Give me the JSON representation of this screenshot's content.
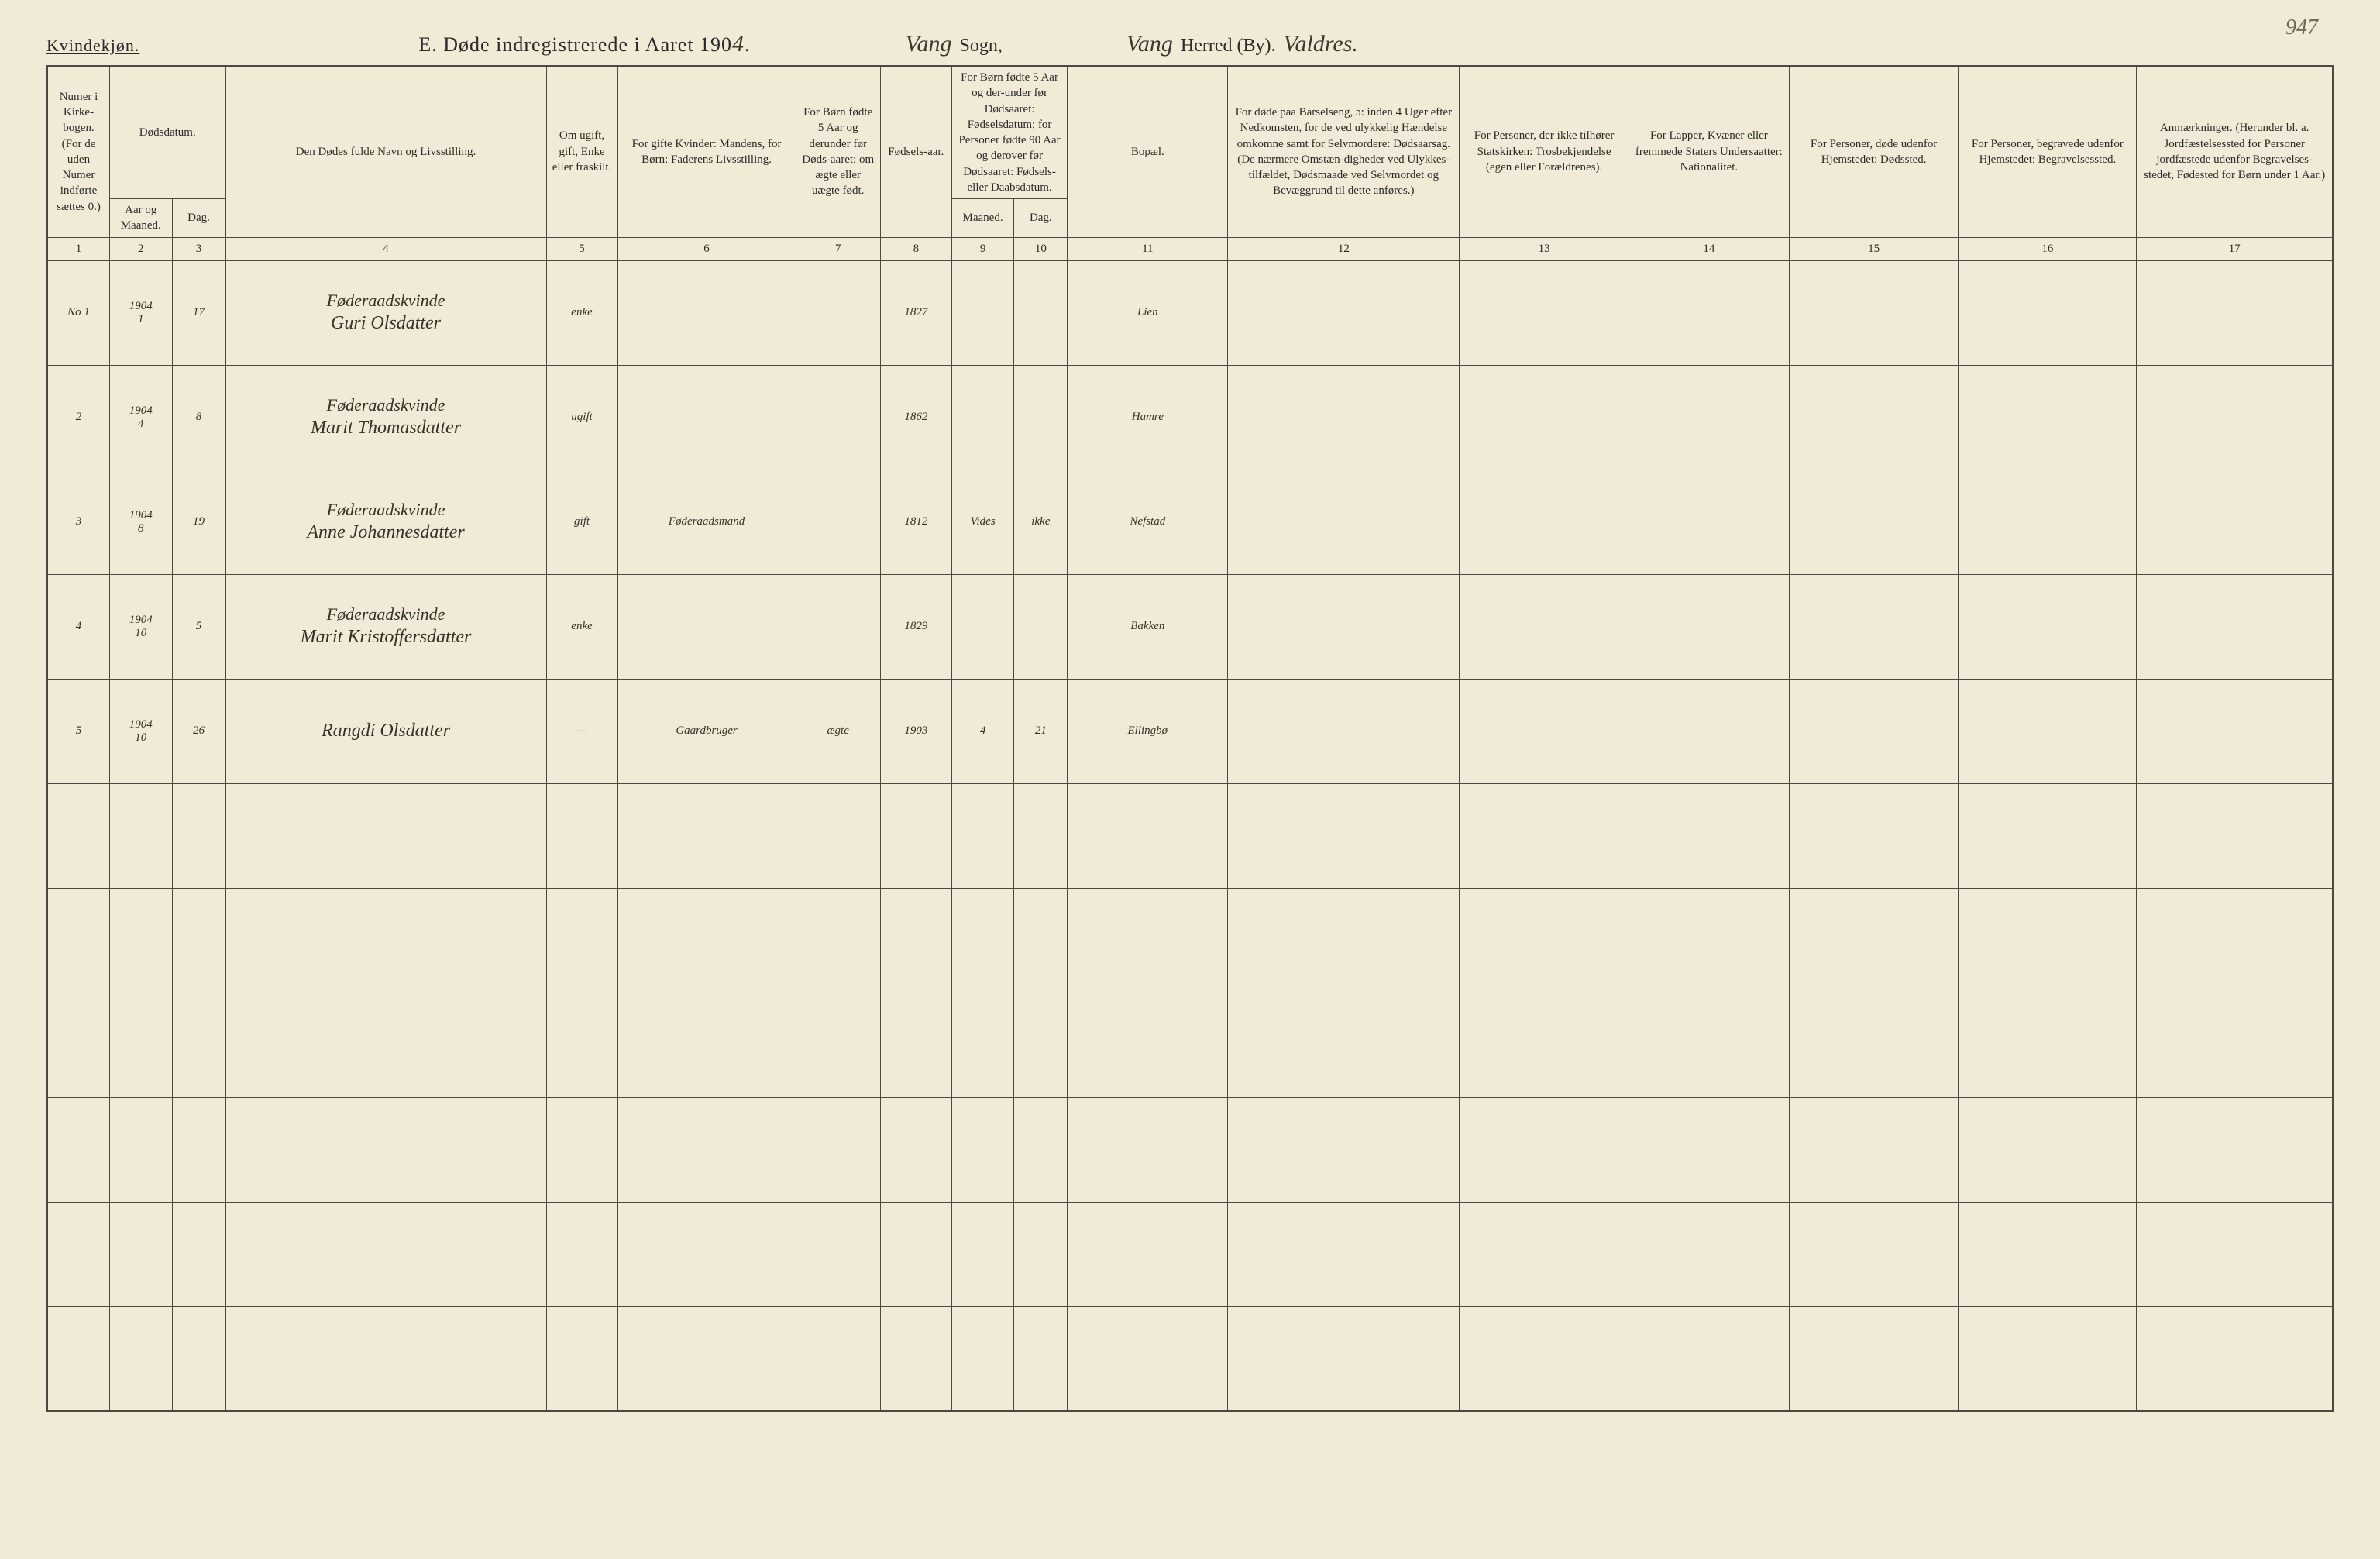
{
  "corner_note": "947",
  "gender_label": "Kvindekjøn.",
  "title_prefix": "E.  Døde indregistrerede i Aaret 190",
  "title_year_hand": "4",
  "title_suffix": ".",
  "sogn_hand": "Vang",
  "sogn_label": "Sogn,",
  "herred_hand": "Vang",
  "herred_label": "Herred (By).",
  "herred_extra_hand": "Valdres.",
  "columns": {
    "c1": "Numer i Kirke-bogen. (For de uden Numer indførte sættes 0.)",
    "c2_top": "Dødsdatum.",
    "c2a": "Aar og Maaned.",
    "c2b": "Dag.",
    "c4": "Den Dødes fulde Navn og Livsstilling.",
    "c5": "Om ugift, gift, Enke eller fraskilt.",
    "c6": "For gifte Kvinder: Mandens, for Børn: Faderens Livsstilling.",
    "c7": "For Børn fødte 5 Aar og derunder før Døds-aaret: om ægte eller uægte født.",
    "c8": "Fødsels-aar.",
    "c9_top": "For Børn fødte 5 Aar og der-under før Dødsaaret: Fødselsdatum; for Personer fødte 90 Aar og derover før Dødsaaret: Fødsels- eller Daabsdatum.",
    "c9a": "Maaned.",
    "c9b": "Dag.",
    "c11": "Bopæl.",
    "c12": "For døde paa Barselseng, ɔ: inden 4 Uger efter Nedkomsten, for de ved ulykkelig Hændelse omkomne samt for Selvmordere: Dødsaarsag. (De nærmere Omstæn-digheder ved Ulykkes-tilfældet, Dødsmaade ved Selvmordet og Bevæggrund til dette anføres.)",
    "c13": "For Personer, der ikke tilhører Statskirken: Trosbekjendelse (egen eller Forældrenes).",
    "c14": "For Lapper, Kvæner eller fremmede Staters Undersaatter: Nationalitet.",
    "c15": "For Personer, døde udenfor Hjemstedet: Dødssted.",
    "c16": "For Personer, begravede udenfor Hjemstedet: Begravelsessted.",
    "c17": "Anmærkninger. (Herunder bl. a. Jordfæstelsessted for Personer jordfæstede udenfor Begravelses-stedet, Fødested for Børn under 1 Aar.)"
  },
  "colnums": [
    "1",
    "2",
    "3",
    "4",
    "5",
    "6",
    "7",
    "8",
    "9",
    "10",
    "11",
    "12",
    "13",
    "14",
    "15",
    "16",
    "17"
  ],
  "rows": [
    {
      "no": "No 1",
      "ym": "1904\n1",
      "day": "17",
      "occupation": "Føderaadskvinde",
      "name": "Guri Olsdatter",
      "status": "enke",
      "father": "",
      "legit": "",
      "byear": "1827",
      "bmon": "",
      "bday": "",
      "place": "Lien"
    },
    {
      "no": "2",
      "ym": "1904\n4",
      "day": "8",
      "occupation": "Føderaadskvinde",
      "name": "Marit Thomasdatter",
      "status": "ugift",
      "father": "",
      "legit": "",
      "byear": "1862",
      "bmon": "",
      "bday": "",
      "place": "Hamre"
    },
    {
      "no": "3",
      "ym": "1904\n8",
      "day": "19",
      "occupation": "Føderaadskvinde",
      "name": "Anne Johannesdatter",
      "status": "gift",
      "father": "Føderaadsmand",
      "legit": "",
      "byear": "1812",
      "bmon": "Vides",
      "bday": "ikke",
      "place": "Nefstad"
    },
    {
      "no": "4",
      "ym": "1904\n10",
      "day": "5",
      "occupation": "Føderaadskvinde",
      "name": "Marit Kristoffersdatter",
      "status": "enke",
      "father": "",
      "legit": "",
      "byear": "1829",
      "bmon": "",
      "bday": "",
      "place": "Bakken"
    },
    {
      "no": "5",
      "ym": "1904\n10",
      "day": "26",
      "occupation": "",
      "name": "Rangdi Olsdatter",
      "status": "—",
      "father": "Gaardbruger",
      "legit": "ægte",
      "byear": "1903",
      "bmon": "4",
      "bday": "21",
      "place": "Ellingbø"
    }
  ],
  "blank_rows": 6,
  "colors": {
    "paper": "#f0ead6",
    "ink": "#2a2a2a",
    "rule": "#4a4a42",
    "hand": "#333328"
  }
}
